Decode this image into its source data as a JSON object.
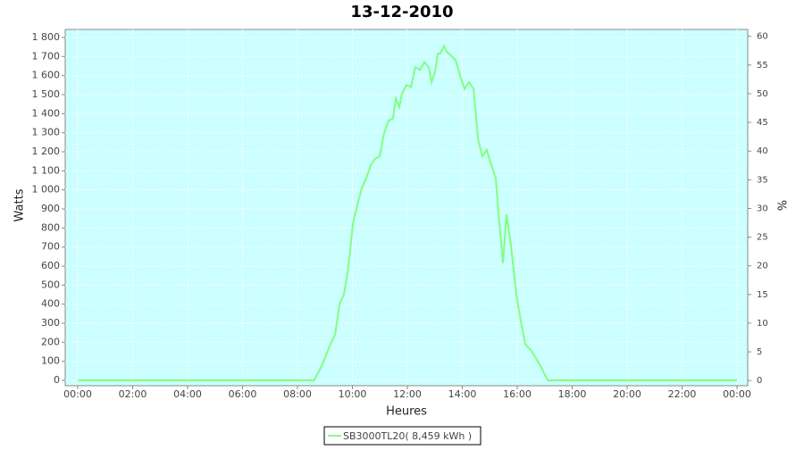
{
  "chart_data": {
    "type": "line",
    "title": "13-12-2010",
    "x_label": "Heures",
    "y_label": "Watts",
    "y2_label": "%",
    "x": [
      0,
      8.6,
      8.88,
      9.2,
      9.37,
      9.53,
      9.69,
      9.85,
      10.02,
      10.18,
      10.34,
      10.5,
      10.67,
      10.83,
      10.99,
      11.15,
      11.32,
      11.48,
      11.58,
      11.71,
      11.8,
      11.97,
      12.13,
      12.29,
      12.46,
      12.62,
      12.78,
      12.88,
      13.01,
      13.11,
      13.2,
      13.33,
      13.43,
      13.59,
      13.76,
      13.92,
      14.08,
      14.24,
      14.41,
      14.57,
      14.73,
      14.89,
      15.06,
      15.22,
      15.32,
      15.48,
      15.61,
      15.77,
      15.97,
      16.13,
      16.29,
      16.52,
      16.85,
      17.11,
      24
    ],
    "series": [
      {
        "name": "SB3000TL20( 8,459 kWh )",
        "color": "#80ff80",
        "values": [
          0,
          0,
          75,
          190,
          240,
          400,
          450,
          590,
          825,
          920,
          1010,
          1060,
          1130,
          1165,
          1175,
          1295,
          1365,
          1375,
          1480,
          1435,
          1505,
          1550,
          1540,
          1645,
          1630,
          1670,
          1645,
          1565,
          1620,
          1715,
          1715,
          1755,
          1725,
          1705,
          1680,
          1600,
          1530,
          1565,
          1530,
          1270,
          1175,
          1210,
          1130,
          1060,
          870,
          615,
          870,
          710,
          450,
          310,
          190,
          155,
          75,
          0,
          0
        ]
      }
    ],
    "xlim": [
      -0.455,
      24.39
    ],
    "xticks": [
      {
        "value": 0,
        "label": "00:00"
      },
      {
        "value": 2,
        "label": "02:00"
      },
      {
        "value": 4,
        "label": "04:00"
      },
      {
        "value": 6,
        "label": "06:00"
      },
      {
        "value": 8,
        "label": "08:00"
      },
      {
        "value": 10,
        "label": "10:00"
      },
      {
        "value": 12,
        "label": "12:00"
      },
      {
        "value": 14,
        "label": "14:00"
      },
      {
        "value": 16,
        "label": "16:00"
      },
      {
        "value": 18,
        "label": "18:00"
      },
      {
        "value": 20,
        "label": "20:00"
      },
      {
        "value": 22,
        "label": "22:00"
      },
      {
        "value": 24,
        "label": "00:00"
      }
    ],
    "ylim": [
      -28,
      1842
    ],
    "yticks": [
      0,
      100,
      200,
      300,
      400,
      500,
      600,
      700,
      800,
      900,
      {
        "value": 1000,
        "label": "1 000"
      },
      {
        "value": 1100,
        "label": "1 100"
      },
      {
        "value": 1200,
        "label": "1 200"
      },
      {
        "value": 1300,
        "label": "1 300"
      },
      {
        "value": 1400,
        "label": "1 400"
      },
      {
        "value": 1500,
        "label": "1 500"
      },
      {
        "value": 1600,
        "label": "1 600"
      },
      {
        "value": 1700,
        "label": "1 700"
      },
      {
        "value": 1800,
        "label": "1 800"
      }
    ],
    "y2lim": [
      -0.9,
      61.2
    ],
    "y2ticks": [
      0,
      5,
      10,
      15,
      20,
      25,
      30,
      35,
      40,
      45,
      50,
      55,
      60
    ],
    "background": "#ccffff",
    "grid": true
  }
}
